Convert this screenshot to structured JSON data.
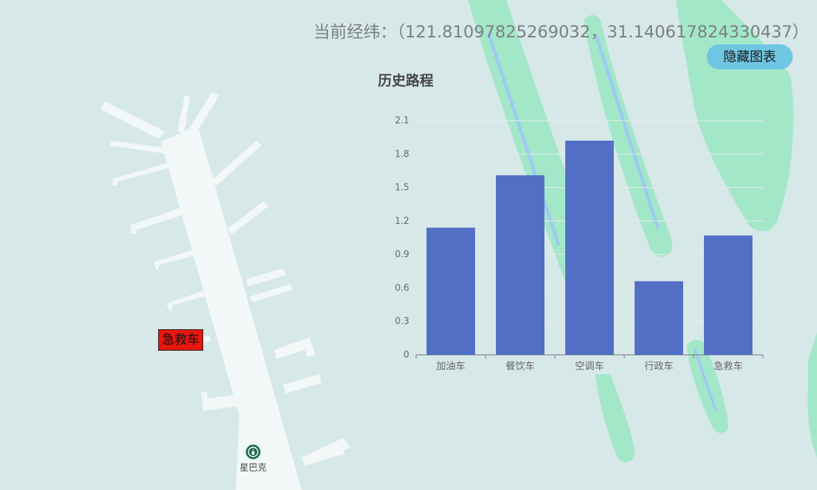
{
  "map": {
    "coordinate_label": "当前经纬：",
    "coordinate_value": "（121.81097825269032，31.140617824330437）",
    "vehicle_marker_label": "急救车",
    "poi_label": "星巴克",
    "colors": {
      "background": "#d7e8e8",
      "green_area": "#a3e7c9",
      "runway": "#f2f7f7",
      "blue_line": "#9ecbf0",
      "marker": "#e8160f"
    }
  },
  "controls": {
    "toggle_chart_label": "隐藏图表"
  },
  "chart_data": {
    "type": "bar",
    "title": "历史路程",
    "categories": [
      "加油车",
      "餐饮车",
      "空调车",
      "行政车",
      "急救车"
    ],
    "values": [
      1.14,
      1.61,
      1.92,
      0.66,
      1.07
    ],
    "ylim": [
      0,
      2.1
    ],
    "yticks": [
      "0",
      "0.3",
      "0.6",
      "0.9",
      "1.2",
      "1.5",
      "1.8",
      "2.1"
    ],
    "xlabel": "",
    "ylabel": "",
    "grid": true,
    "bar_color": "#536fc5"
  }
}
